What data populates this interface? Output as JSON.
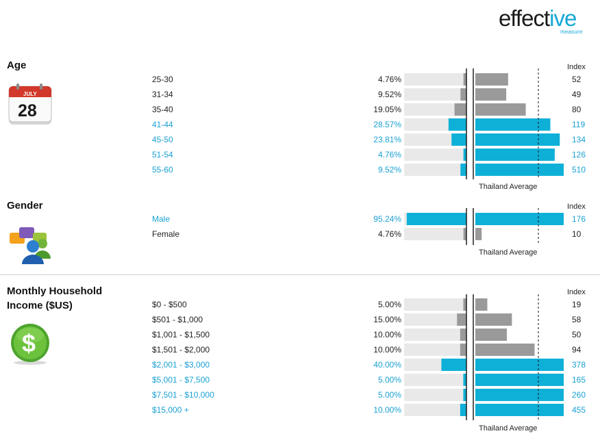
{
  "brand": {
    "logo_main": "effect",
    "logo_accent": "ive",
    "logo_sub": "measure"
  },
  "index_header": "Index",
  "average_label": "Thailand Average",
  "colors": {
    "highlight": "#0fb0d8",
    "normal_bar": "#9a9a9a",
    "track": "#e9e9e9",
    "highlight_text": "#1aa1d4"
  },
  "icons": {
    "age": "calendar-icon",
    "gender": "people-chat-icon",
    "income": "dollar-coin-icon"
  },
  "calendar": {
    "month": "JULY",
    "day": "28"
  },
  "chart_data": [
    {
      "type": "bar",
      "title": "Age",
      "categories": [
        "25-30",
        "31-34",
        "35-40",
        "41-44",
        "45-50",
        "51-54",
        "55-60"
      ],
      "percent_labels": [
        "4.76%",
        "9.52%",
        "19.05%",
        "28.57%",
        "23.81%",
        "4.76%",
        "9.52%"
      ],
      "percent": [
        4.76,
        9.52,
        19.05,
        28.57,
        23.81,
        4.76,
        9.52
      ],
      "index": [
        52,
        49,
        80,
        119,
        134,
        126,
        510
      ],
      "highlight": [
        false,
        false,
        false,
        true,
        true,
        true,
        true
      ],
      "index_axis_max": 140,
      "average_line": 100
    },
    {
      "type": "bar",
      "title": "Gender",
      "categories": [
        "Male",
        "Female"
      ],
      "percent_labels": [
        "95.24%",
        "4.76%"
      ],
      "percent": [
        95.24,
        4.76
      ],
      "index": [
        176,
        10
      ],
      "highlight": [
        true,
        false
      ],
      "index_axis_max": 140,
      "average_line": 100
    },
    {
      "type": "bar",
      "title": "Monthly Household Income ($US)",
      "title_lines": [
        "Monthly Household",
        "Income ($US)"
      ],
      "categories": [
        "$0 - $500",
        "$501 - $1,000",
        "$1,001 - $1,500",
        "$1,501 - $2,000",
        "$2,001 - $3,000",
        "$5,001 - $7,500",
        "$7,501 - $10,000",
        "$15,000 +"
      ],
      "percent_labels": [
        "5.00%",
        "15.00%",
        "10.00%",
        "10.00%",
        "40.00%",
        "5.00%",
        "5.00%",
        "10.00%"
      ],
      "percent": [
        5.0,
        15.0,
        10.0,
        10.0,
        40.0,
        5.0,
        5.0,
        10.0
      ],
      "index": [
        19,
        58,
        50,
        94,
        378,
        165,
        260,
        455
      ],
      "highlight": [
        false,
        false,
        false,
        false,
        true,
        true,
        true,
        true
      ],
      "index_axis_max": 140,
      "average_line": 100
    }
  ]
}
